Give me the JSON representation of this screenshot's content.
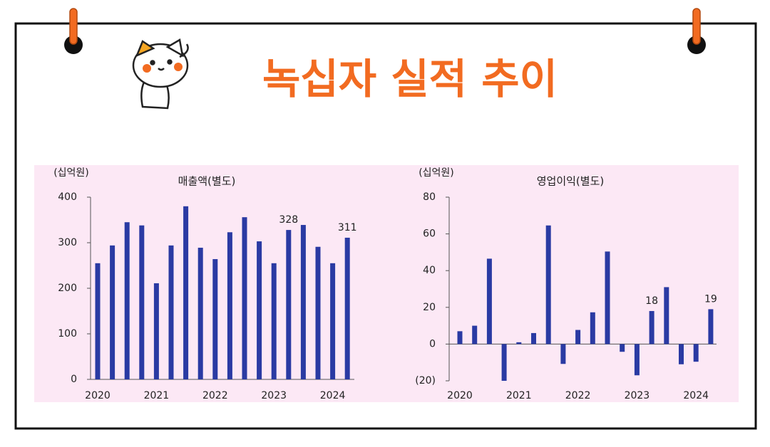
{
  "title": "녹십자 실적 추이",
  "chart_data": [
    {
      "type": "bar",
      "title": "매출액(별도)",
      "y_label": "(십억원)",
      "categories": [
        "2020",
        null,
        null,
        null,
        "2021",
        null,
        null,
        null,
        "2022",
        null,
        null,
        null,
        "2023",
        null,
        null,
        null,
        "2024",
        null
      ],
      "values": [
        255,
        294,
        345,
        338,
        211,
        294,
        380,
        289,
        264,
        323,
        356,
        303,
        255,
        328,
        339,
        291,
        255,
        311
      ],
      "color": "#2a3aa3",
      "ylim": [
        0,
        400
      ],
      "yticks": [
        0,
        100,
        200,
        300,
        400
      ],
      "labeled_indices": [
        13,
        17
      ]
    },
    {
      "type": "bar",
      "title": "영업이익(별도)",
      "y_label": "(십억원)",
      "categories": [
        "2020",
        null,
        null,
        null,
        "2021",
        null,
        null,
        null,
        "2022",
        null,
        null,
        null,
        "2023",
        null,
        null,
        null,
        "2024",
        null
      ],
      "values": [
        7,
        10,
        46.5,
        -20,
        1,
        6,
        64.6,
        -10.8,
        7.7,
        17.3,
        50.4,
        -4.2,
        -17,
        18,
        31,
        -11,
        -9.6,
        19
      ],
      "color": "#2a3aa3",
      "ylim": [
        -20,
        80
      ],
      "yticks": [
        {
          "value": -20,
          "label": "(20)"
        },
        0,
        20,
        40,
        60,
        80
      ],
      "labeled_indices": [
        13,
        17
      ]
    }
  ]
}
